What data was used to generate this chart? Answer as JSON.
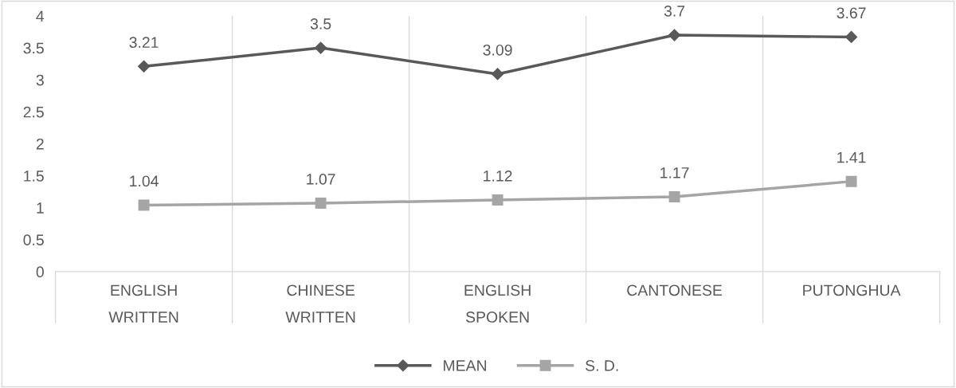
{
  "chart_data": {
    "type": "line",
    "categories": [
      "ENGLISH WRITTEN",
      "CHINESE WRITTEN",
      "ENGLISH SPOKEN",
      "CANTONESE",
      "PUTONGHUA"
    ],
    "series": [
      {
        "name": "MEAN",
        "color": "#595959",
        "marker": "diamond",
        "values": [
          3.21,
          3.5,
          3.09,
          3.7,
          3.67
        ]
      },
      {
        "name": "S. D.",
        "color": "#a5a5a5",
        "marker": "square",
        "values": [
          1.04,
          1.07,
          1.12,
          1.17,
          1.41
        ]
      }
    ],
    "ylim": [
      0,
      4
    ],
    "yticks": [
      0,
      0.5,
      1,
      1.5,
      2,
      2.5,
      3,
      3.5,
      4
    ],
    "grid": "x",
    "legend": "bottom",
    "data_labels": true,
    "line_style": "solid"
  }
}
